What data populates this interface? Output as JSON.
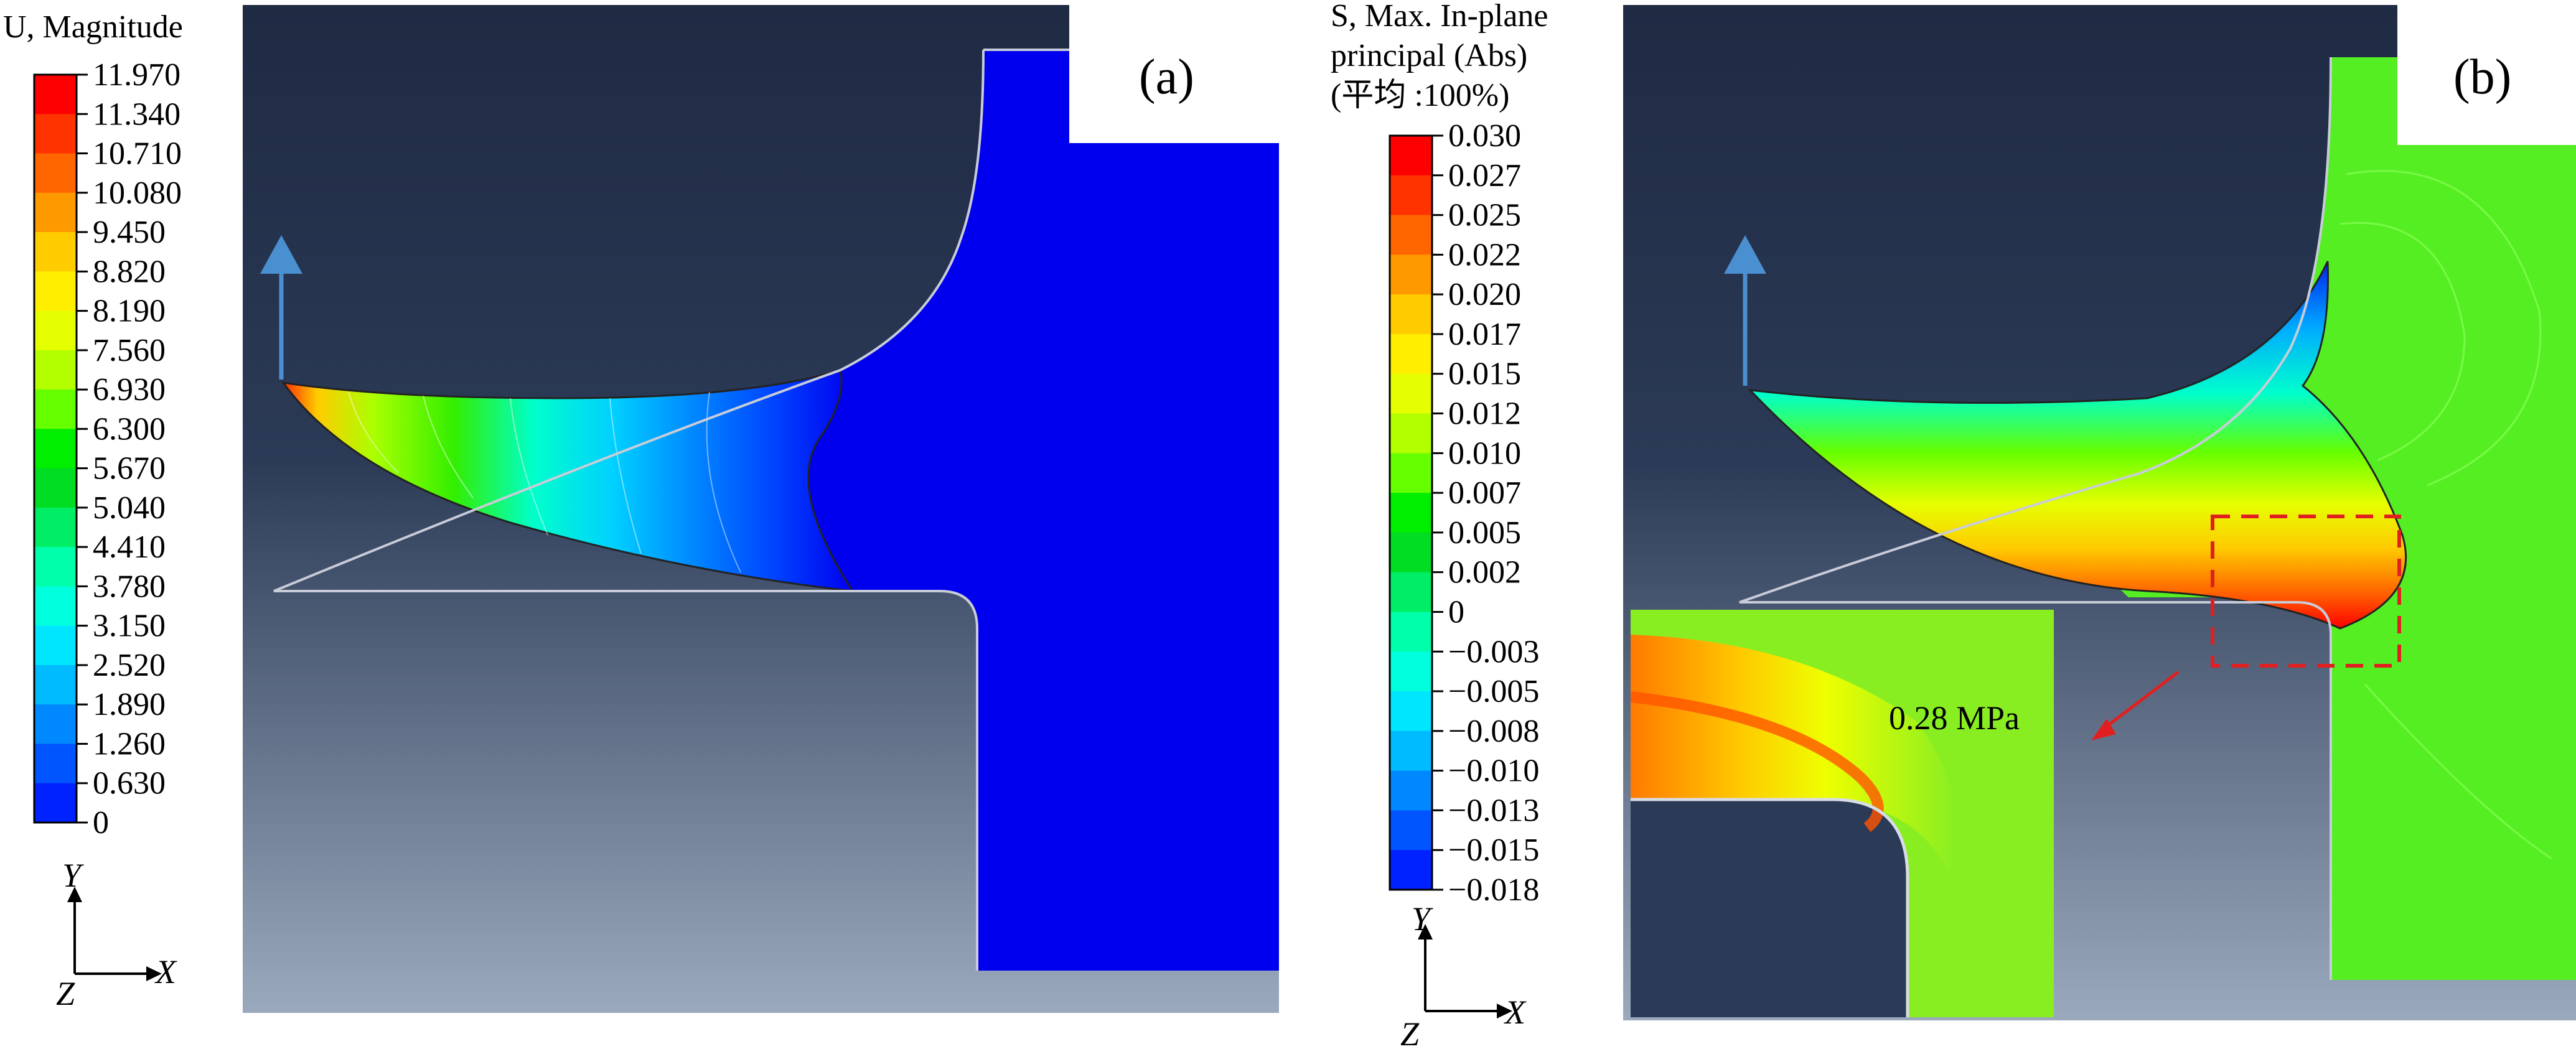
{
  "panel_a": {
    "tag": "(a)",
    "legend_title": "U, Magnitude",
    "legend_values": [
      "11.970",
      "11.340",
      "10.710",
      "10.080",
      "9.450",
      "8.820",
      "8.190",
      "7.560",
      "6.930",
      "6.300",
      "5.670",
      "5.040",
      "4.410",
      "3.780",
      "3.150",
      "2.520",
      "1.890",
      "1.260",
      "0.630",
      "0"
    ],
    "axes": {
      "y": "Y",
      "x": "X",
      "z": "Z"
    }
  },
  "panel_b": {
    "tag": "(b)",
    "legend_title_lines": [
      "S, Max. In-plane",
      "principal (Abs)",
      "(平均 :100%)"
    ],
    "legend_values": [
      "0.030",
      "0.027",
      "0.025",
      "0.022",
      "0.020",
      "0.017",
      "0.015",
      "0.012",
      "0.010",
      "0.007",
      "0.005",
      "0.002",
      "0",
      "−0.003",
      "−0.005",
      "−0.008",
      "−0.010",
      "−0.013",
      "−0.015",
      "−0.018"
    ],
    "axes": {
      "y": "Y",
      "x": "X",
      "z": "Z"
    },
    "annotation": "0.28 MPa"
  },
  "colors": {
    "legend_scale": [
      "#ff0000",
      "#ff3300",
      "#ff6600",
      "#ff9900",
      "#ffcc00",
      "#ffee00",
      "#e6ff00",
      "#b3ff00",
      "#66ff00",
      "#00ee00",
      "#00dd22",
      "#00ee66",
      "#00ffaa",
      "#00ffdd",
      "#00e6ff",
      "#00bbff",
      "#0088ff",
      "#0055ff",
      "#0022ff",
      "#0000ee"
    ],
    "background_top": "#1e2a44",
    "background_bottom": "#9aa8bc",
    "rigid_blue": "#0000ee",
    "mesh_green": "#55ee22",
    "callout_red": "#e02020"
  }
}
